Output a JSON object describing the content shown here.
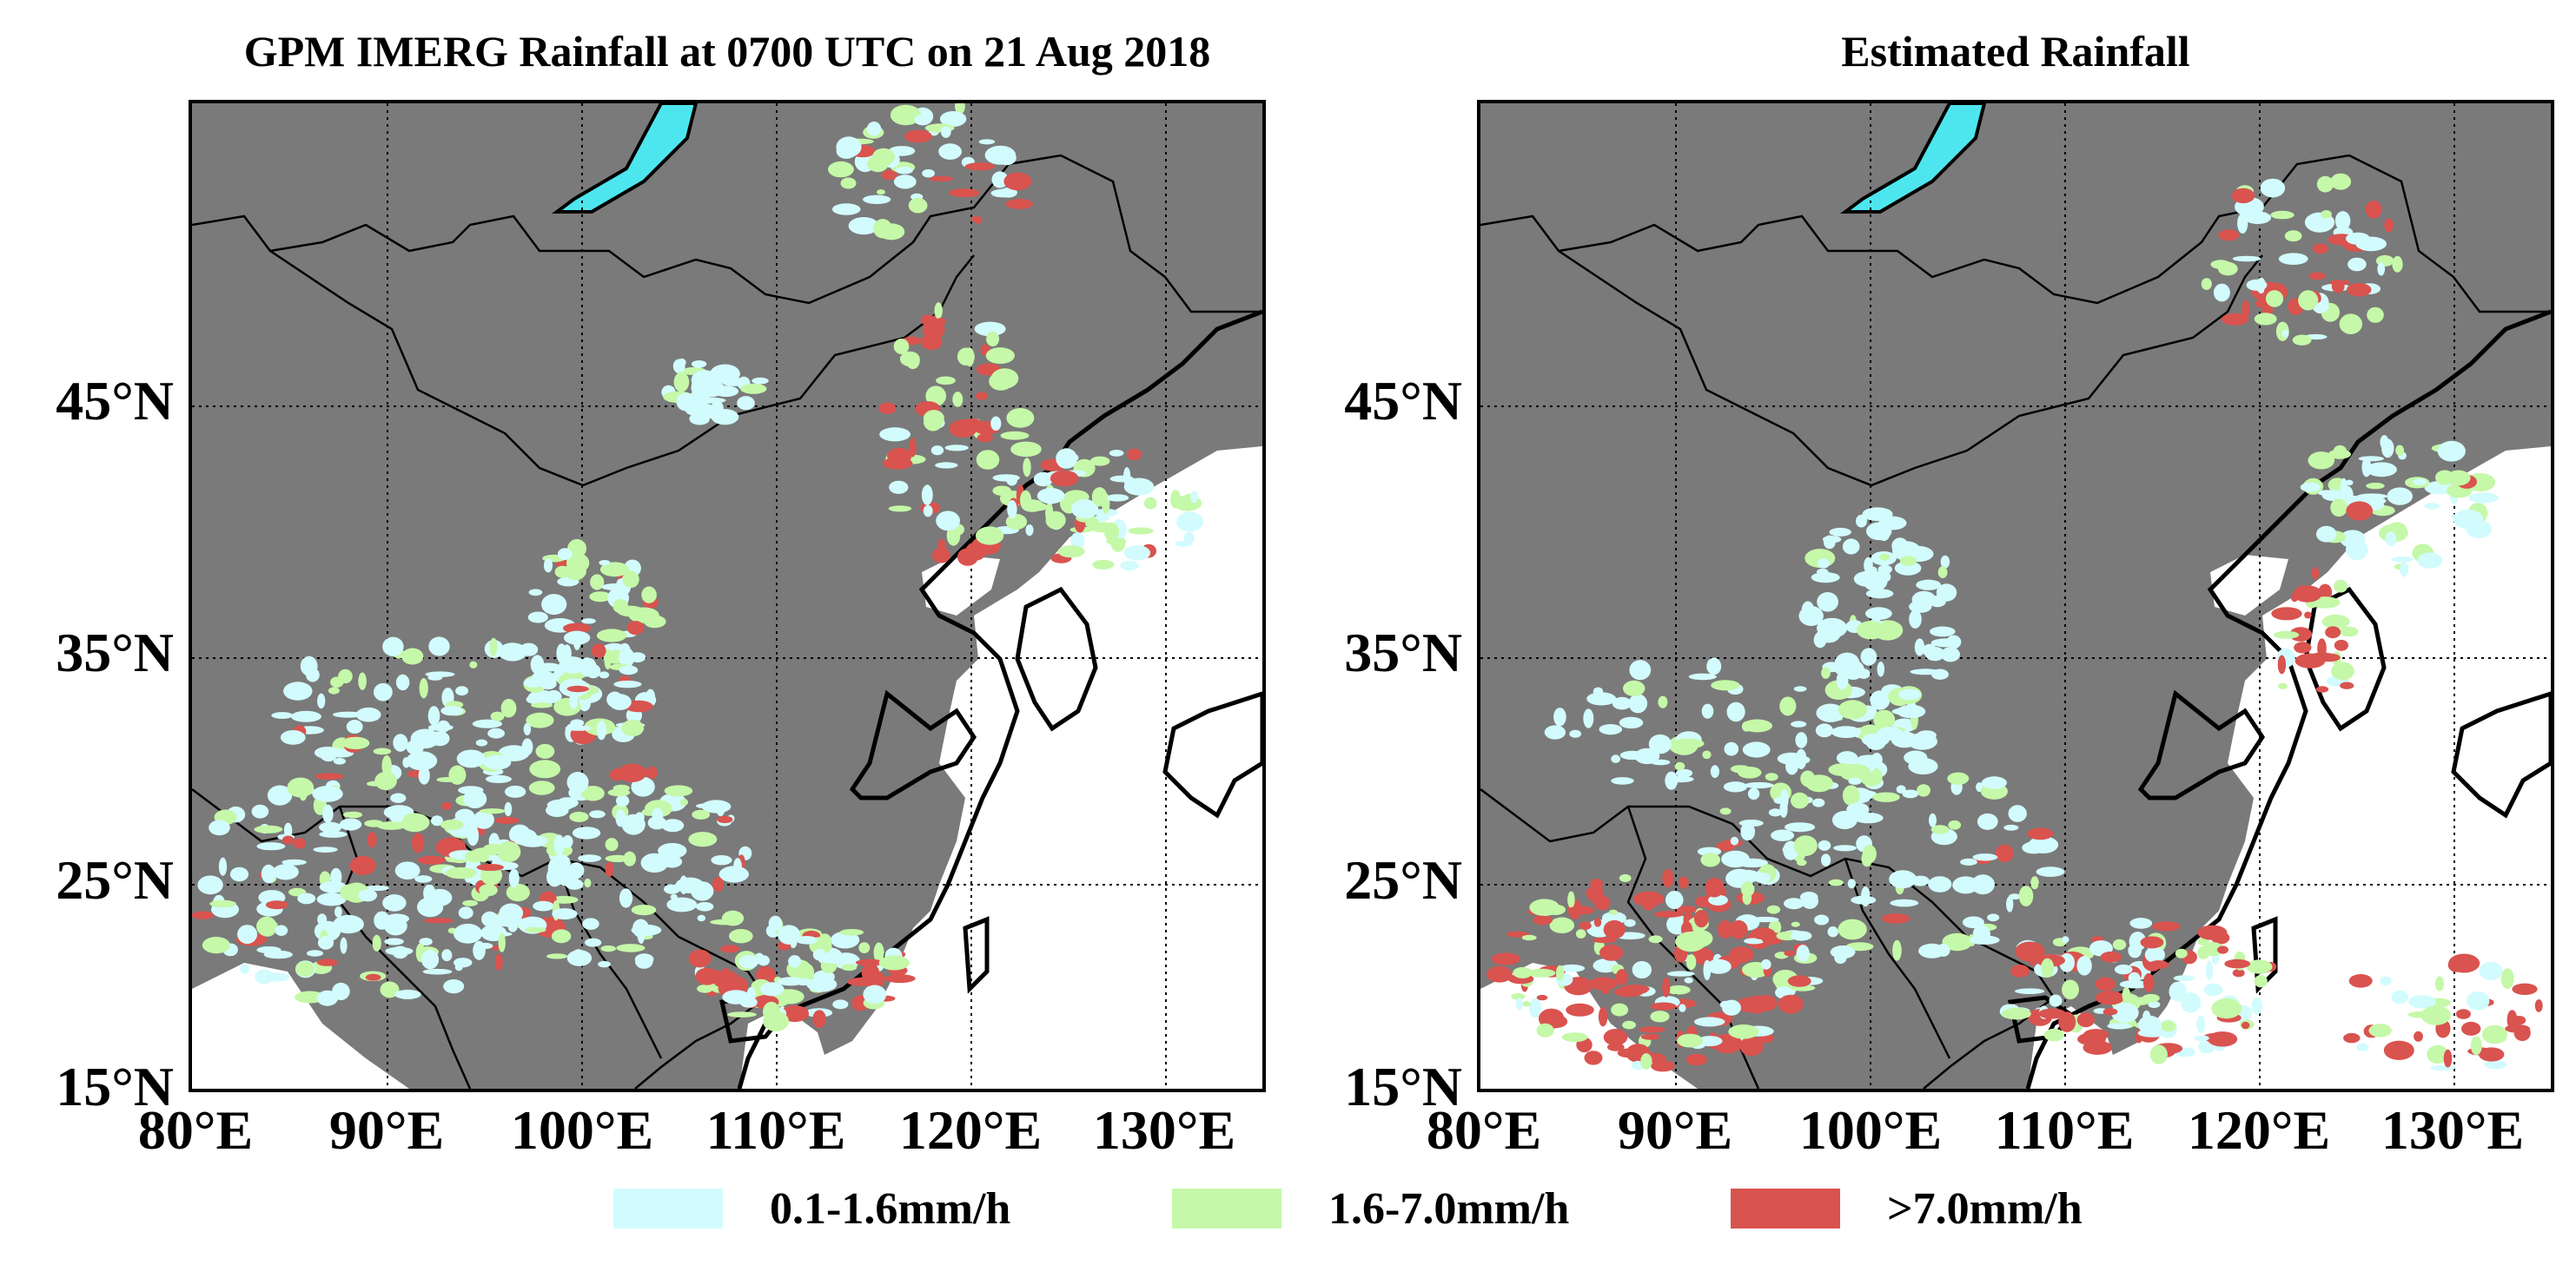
{
  "titles": {
    "left": "GPM IMERG Rainfall at 0700 UTC on 21 Aug 2018",
    "right": "Estimated Rainfall"
  },
  "axes": {
    "lat_labels": [
      "45°N",
      "35°N",
      "25°N",
      "15°N"
    ],
    "lon_labels": [
      "80°E",
      "90°E",
      "100°E",
      "110°E",
      "120°E",
      "130°E"
    ],
    "lon_range": [
      80,
      135
    ],
    "lat_range": [
      15,
      55
    ]
  },
  "legend": [
    {
      "label": "0.1-1.6mm/h",
      "color": "#d2fbfd"
    },
    {
      "label": "1.6-7.0mm/h",
      "color": "#c5f8a8"
    },
    {
      "label": ">7.0mm/h",
      "color": "#d9534f"
    }
  ],
  "colors": {
    "land": "#7a7a7a",
    "sea": "#ffffff",
    "lake": "#4ee6ee",
    "border": "#000000"
  }
}
